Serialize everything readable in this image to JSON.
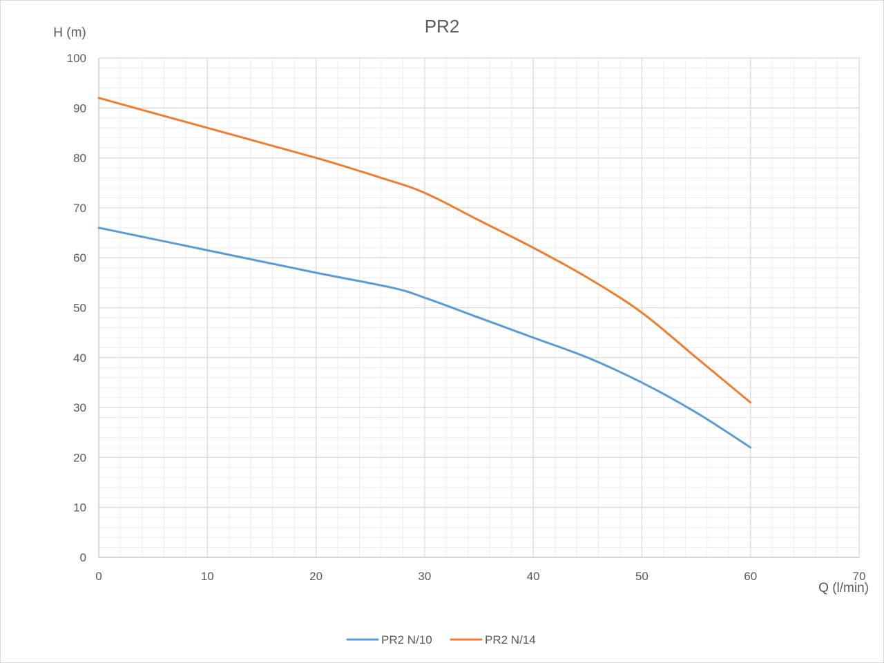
{
  "chart_data": {
    "type": "line",
    "title": "PR2",
    "xlabel": "Q (l/min)",
    "ylabel": "H (m)",
    "xlim": [
      0,
      70
    ],
    "ylim": [
      0,
      100
    ],
    "x_major_step": 10,
    "y_major_step": 10,
    "x_minor_step": 2,
    "y_minor_step": 2,
    "x_ticks": [
      "0",
      "10",
      "20",
      "30",
      "40",
      "50",
      "60",
      "70"
    ],
    "y_ticks": [
      "0",
      "10",
      "20",
      "30",
      "40",
      "50",
      "60",
      "70",
      "80",
      "90",
      "100"
    ],
    "grid": true,
    "legend_position": "bottom",
    "series": [
      {
        "name": "PR2 N/10",
        "color": "#5B9BD5",
        "x": [
          0,
          10,
          20,
          27,
          30,
          35,
          40,
          45,
          50,
          55,
          60
        ],
        "y": [
          66,
          61.5,
          57,
          54,
          52,
          48,
          44,
          40,
          35,
          29,
          22
        ]
      },
      {
        "name": "PR2 N/14",
        "color": "#ED7D31",
        "x": [
          0,
          10,
          20,
          26,
          30,
          35,
          40,
          45,
          50,
          55,
          60
        ],
        "y": [
          92,
          86,
          80,
          76,
          73,
          67.5,
          62,
          56,
          49,
          40,
          31
        ]
      }
    ]
  }
}
